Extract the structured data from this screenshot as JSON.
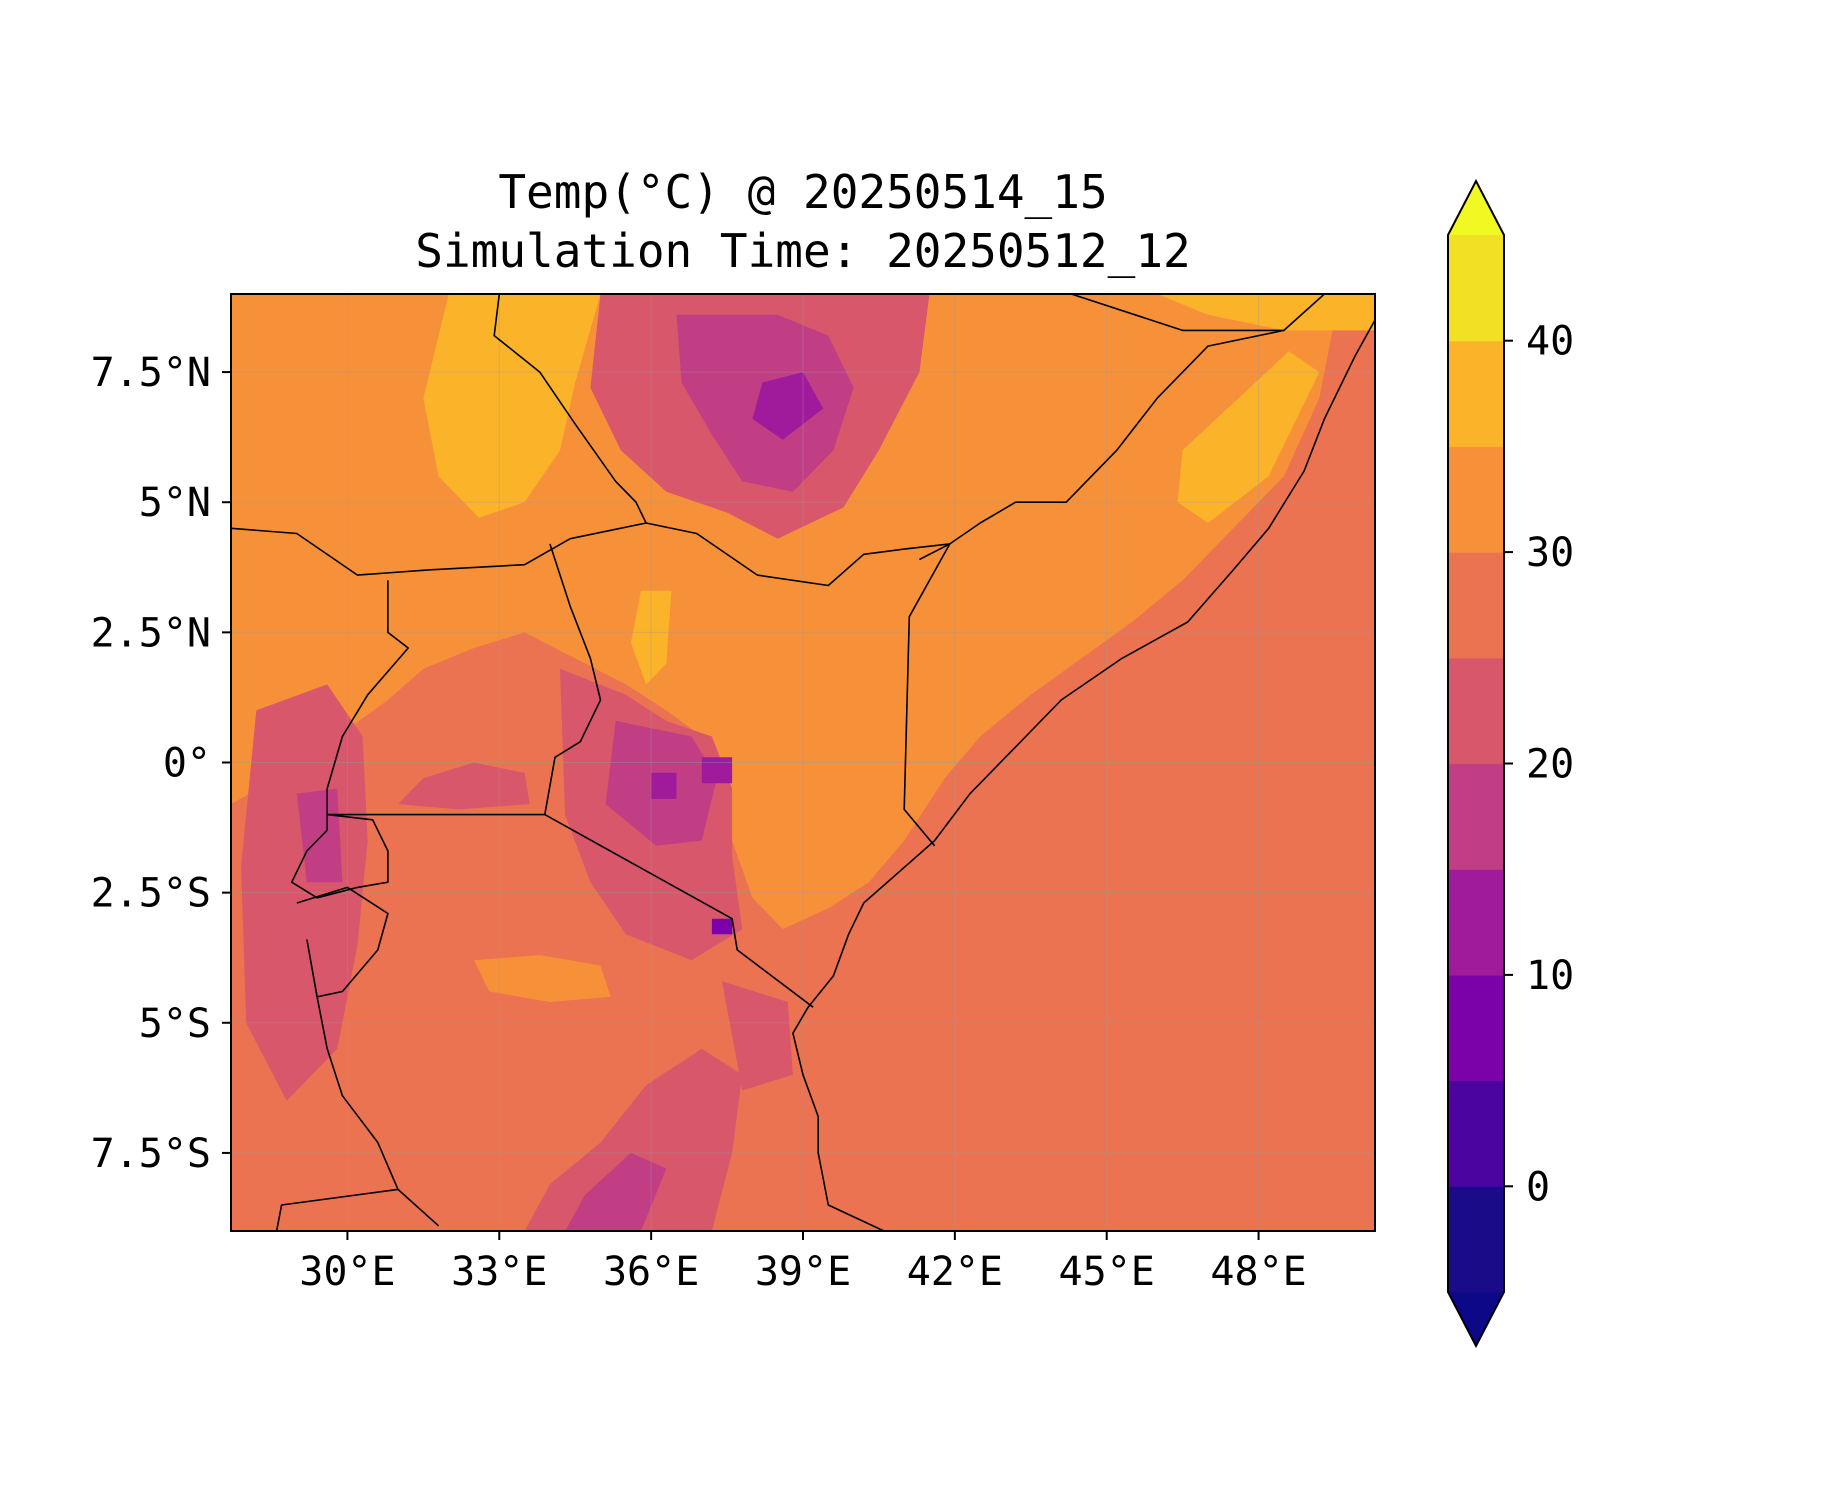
{
  "title": {
    "line1": "Temp(°C) @ 20250514_15",
    "line2": "Simulation Time: 20250512_12"
  },
  "chart_data": {
    "type": "heatmap",
    "variable": "Temp(°C)",
    "map_extent": {
      "lon": [
        27.7,
        50.3
      ],
      "lat": [
        -9.0,
        9.0
      ]
    },
    "x_ticks": [
      {
        "lon": 30,
        "label": "30°E"
      },
      {
        "lon": 33,
        "label": "33°E"
      },
      {
        "lon": 36,
        "label": "36°E"
      },
      {
        "lon": 39,
        "label": "39°E"
      },
      {
        "lon": 42,
        "label": "42°E"
      },
      {
        "lon": 45,
        "label": "45°E"
      },
      {
        "lon": 48,
        "label": "48°E"
      }
    ],
    "y_ticks": [
      {
        "lat": 7.5,
        "label": "7.5°N"
      },
      {
        "lat": 5,
        "label": "5°N"
      },
      {
        "lat": 2.5,
        "label": "2.5°N"
      },
      {
        "lat": 0,
        "label": "0°"
      },
      {
        "lat": -2.5,
        "label": "2.5°S"
      },
      {
        "lat": -5,
        "label": "5°S"
      },
      {
        "lat": -7.5,
        "label": "7.5°S"
      }
    ],
    "grid": true,
    "colorbar": {
      "range": [
        -5,
        45
      ],
      "extend": "both",
      "levels": [
        -5,
        0,
        5,
        10,
        15,
        20,
        25,
        30,
        35,
        40,
        45
      ],
      "colors": [
        "#1a0c88",
        "#4b04a0",
        "#7b02a8",
        "#a01a9c",
        "#c13e85",
        "#d8576b",
        "#eb7352",
        "#f6913a",
        "#fbb32a",
        "#f1e024"
      ],
      "under_color": "#0d0887",
      "over_color": "#f0f921",
      "ticks": [
        {
          "value": 0,
          "label": "0"
        },
        {
          "value": 10,
          "label": "10"
        },
        {
          "value": 20,
          "label": "20"
        },
        {
          "value": 30,
          "label": "30"
        },
        {
          "value": 40,
          "label": "40"
        }
      ]
    },
    "field_colors": {
      "ocean": "#eb7352",
      "warm": "#f6913a",
      "hot": "#fbb32a",
      "mild": "#d8576b",
      "cool": "#c13e85",
      "cold": "#a01a9c",
      "colder": "#7b02a8"
    }
  }
}
